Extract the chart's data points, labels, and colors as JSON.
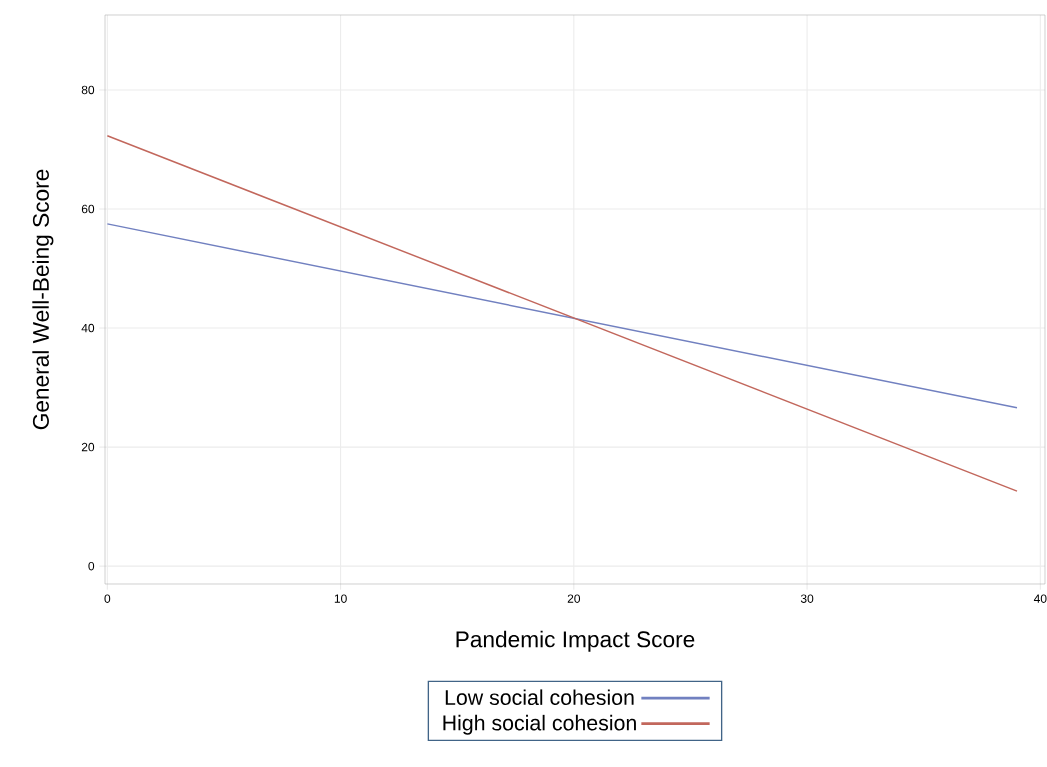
{
  "chart_data": {
    "type": "line",
    "xlabel": "Pandemic Impact Score",
    "ylabel": "General Well-Being Score",
    "x": [
      0,
      39
    ],
    "series": [
      {
        "name": "Low social cohesion",
        "color": "#7180c0",
        "values": [
          57.5,
          26.6
        ]
      },
      {
        "name": "High social cohesion",
        "color": "#c2675c",
        "values": [
          72.3,
          12.6
        ]
      }
    ],
    "xlim": [
      -0.1,
      40.2
    ],
    "ylim": [
      -3,
      92.6
    ],
    "xticks": [
      0,
      10,
      20,
      30,
      40
    ],
    "yticks": [
      0,
      20,
      40,
      60,
      80
    ],
    "grid": true,
    "legend": "bottom",
    "marker": "none",
    "line_style": "solid"
  }
}
